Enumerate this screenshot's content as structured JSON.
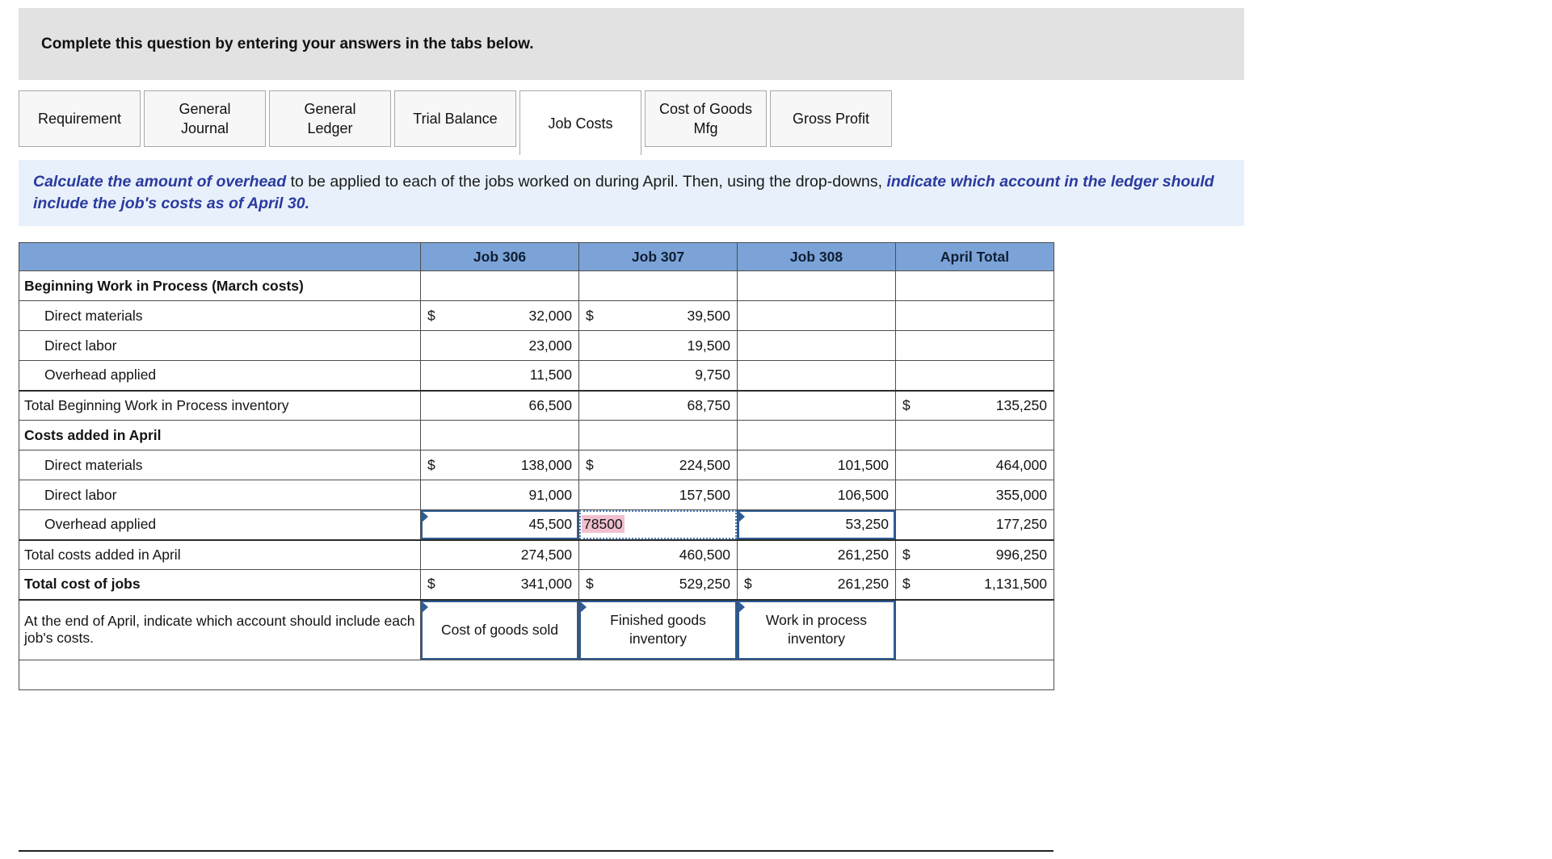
{
  "page": {
    "banner": "Complete this question by entering your answers in the tabs below."
  },
  "tabs": [
    {
      "label": "Requirement",
      "active": false
    },
    {
      "label": "General Journal",
      "active": false
    },
    {
      "label": "General Ledger",
      "active": false
    },
    {
      "label": "Trial Balance",
      "active": false
    },
    {
      "label": "Job Costs",
      "active": true
    },
    {
      "label": "Cost of Goods Mfg",
      "active": false
    },
    {
      "label": "Gross Profit",
      "active": false
    }
  ],
  "instruction": {
    "segments": [
      {
        "text": "Calculate the amount of overhead",
        "emphasis": true
      },
      {
        "text": " to be applied to each of the jobs worked on during April.  Then, using the drop-downs, ",
        "emphasis": false
      },
      {
        "text": "indicate which account in the ledger should include the job's costs as of April 30.",
        "emphasis": true
      }
    ]
  },
  "table": {
    "columns": [
      "",
      "Job 306",
      "Job 307",
      "Job 308",
      "April Total"
    ],
    "rows": [
      {
        "label": "Beginning Work in Process (March costs)",
        "style": "section",
        "cells": [
          {},
          {},
          {},
          {}
        ]
      },
      {
        "label": "Direct materials",
        "style": "indent",
        "cells": [
          {
            "dollar": "$",
            "value": "32,000"
          },
          {
            "dollar": "$",
            "value": "39,500"
          },
          {},
          {}
        ]
      },
      {
        "label": "Direct labor",
        "style": "indent",
        "cells": [
          {
            "value": "23,000"
          },
          {
            "value": "19,500"
          },
          {},
          {}
        ]
      },
      {
        "label": "Overhead applied",
        "style": "indent",
        "cells": [
          {
            "value": "11,500"
          },
          {
            "value": "9,750"
          },
          {},
          {}
        ]
      },
      {
        "label": "Total Beginning Work in Process inventory",
        "style": "totalline",
        "cells": [
          {
            "value": "66,500"
          },
          {
            "value": "68,750"
          },
          {},
          {
            "dollar": "$",
            "value": "135,250"
          }
        ]
      },
      {
        "label": "Costs added in April",
        "style": "section",
        "cells": [
          {},
          {},
          {},
          {}
        ]
      },
      {
        "label": "Direct materials",
        "style": "indent",
        "cells": [
          {
            "dollar": "$",
            "value": "138,000"
          },
          {
            "dollar": "$",
            "value": "224,500"
          },
          {
            "value": "101,500"
          },
          {
            "value": "464,000"
          }
        ]
      },
      {
        "label": "Direct labor",
        "style": "indent",
        "cells": [
          {
            "value": "91,000"
          },
          {
            "value": "157,500"
          },
          {
            "value": "106,500"
          },
          {
            "value": "355,000"
          }
        ]
      },
      {
        "label": "Overhead applied",
        "style": "indent",
        "cells": [
          {
            "value": "45,500",
            "kind": "input"
          },
          {
            "value": "78500",
            "kind": "active"
          },
          {
            "value": "53,250",
            "kind": "input"
          },
          {
            "value": "177,250"
          }
        ]
      },
      {
        "label": "Total costs added in April",
        "style": "totalline",
        "cells": [
          {
            "value": "274,500"
          },
          {
            "value": "460,500"
          },
          {
            "value": "261,250"
          },
          {
            "dollar": "$",
            "value": "996,250"
          }
        ]
      },
      {
        "label": "Total cost of jobs",
        "style": "bold",
        "cells": [
          {
            "dollar": "$",
            "value": "341,000"
          },
          {
            "dollar": "$",
            "value": "529,250"
          },
          {
            "dollar": "$",
            "value": "261,250"
          },
          {
            "dollar": "$",
            "value": "1,131,500"
          }
        ]
      }
    ],
    "account_row": {
      "label": "At the end of April, indicate which account should include each job's costs.",
      "selections": [
        "Cost of goods sold",
        "Finished goods inventory",
        "Work in process inventory"
      ]
    }
  },
  "colors": {
    "banner_bg": "#e2e2e2",
    "header_blue": "#7ca3d7",
    "accent_blue": "#2e5c95",
    "dotted_blue": "#4a7ebb",
    "instruction_bg": "#e8f1fb",
    "instruction_text": "#2b3a9f",
    "highlight_pink": "#f1c0cf"
  }
}
